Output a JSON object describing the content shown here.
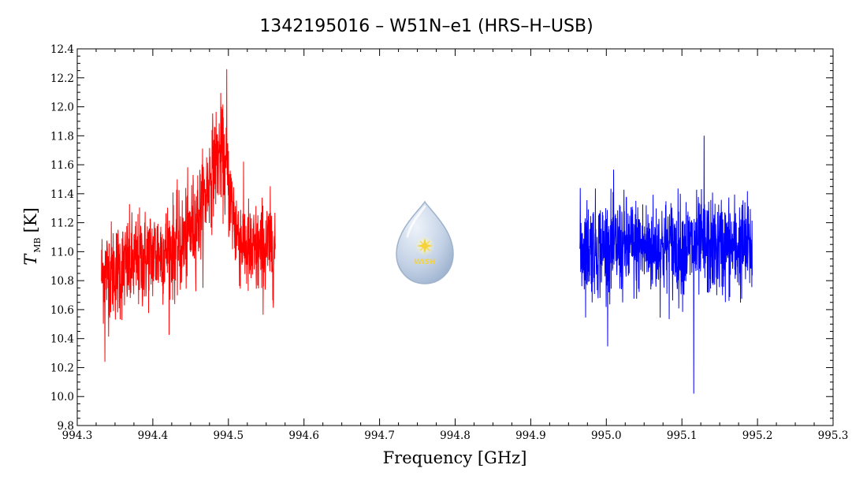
{
  "chart_data": {
    "type": "line",
    "title": "1342195016 – W51N–e1 (HRS–H–USB)",
    "xlabel": "Frequency [GHz]",
    "ylabel_main": "T",
    "ylabel_sub": "MB",
    "ylabel_unit": "[K]",
    "xlim": [
      994.3,
      995.3
    ],
    "ylim": [
      9.8,
      12.4
    ],
    "x_ticks": [
      "994.3",
      "994.4",
      "994.5",
      "994.6",
      "994.7",
      "994.8",
      "994.9",
      "995.0",
      "995.1",
      "995.2",
      "995.3"
    ],
    "y_ticks": [
      "9.8",
      "10.0",
      "10.2",
      "10.4",
      "10.6",
      "10.8",
      "11.0",
      "11.2",
      "11.4",
      "11.6",
      "11.8",
      "12.0",
      "12.2",
      "12.4"
    ],
    "grid": false,
    "series": [
      {
        "color": "#ff0000",
        "x_range": [
          994.332,
          994.562
        ],
        "envelope": {
          "x": [
            994.332,
            994.36,
            994.4,
            994.44,
            994.465,
            994.48,
            994.49,
            994.5,
            994.51,
            994.53,
            994.562
          ],
          "y": [
            10.85,
            10.88,
            10.98,
            11.05,
            11.3,
            11.6,
            11.7,
            11.45,
            11.15,
            10.98,
            11.05
          ]
        },
        "min": 10.24,
        "max": 12.26
      },
      {
        "color": "#0000ff",
        "x_range": [
          994.965,
          995.193
        ],
        "envelope": {
          "x": [
            994.965,
            995.193
          ],
          "y": [
            11.03,
            11.03
          ]
        },
        "min": 10.02,
        "max": 11.8
      }
    ]
  },
  "logo": {
    "text": "WISH",
    "colors": {
      "drop": "#b8c8de",
      "star": "#f4d33c"
    }
  }
}
